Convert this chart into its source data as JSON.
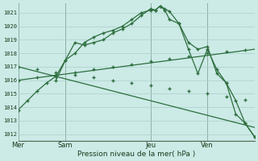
{
  "bg_color": "#cceae6",
  "grid_color": "#aacfcc",
  "line_color": "#2d6e3e",
  "ylabel_min": 1012,
  "ylabel_max": 1021,
  "xlabel": "Pression niveau de la mer( hPa )",
  "day_labels": [
    "Mer",
    "Sam",
    "Jeu",
    "Ven"
  ],
  "day_positions": [
    0,
    5,
    14,
    20
  ],
  "xlim": [
    0,
    25
  ],
  "line1_x": [
    0,
    1,
    2,
    3,
    4,
    5,
    6,
    7,
    8,
    9,
    10,
    11,
    12,
    13,
    14,
    14.5,
    15,
    15.5,
    16,
    17,
    18,
    19,
    20,
    21,
    22,
    23,
    24,
    25
  ],
  "line1_y": [
    1013.8,
    1014.5,
    1015.2,
    1015.8,
    1016.3,
    1017.5,
    1018.0,
    1018.8,
    1019.2,
    1019.5,
    1019.7,
    1020.0,
    1020.5,
    1021.0,
    1021.2,
    1021.2,
    1021.5,
    1021.3,
    1021.1,
    1020.2,
    1018.8,
    1018.3,
    1018.5,
    1016.5,
    1015.8,
    1013.5,
    1012.8,
    1011.8
  ],
  "line2_x": [
    4,
    5,
    6,
    7,
    8,
    9,
    10,
    11,
    12,
    13,
    14,
    14.5,
    15,
    15.5,
    16,
    17,
    18,
    19,
    20,
    21,
    22,
    23,
    24,
    25
  ],
  "line2_y": [
    1016.0,
    1017.5,
    1018.8,
    1018.6,
    1018.8,
    1019.0,
    1019.5,
    1019.8,
    1020.2,
    1020.8,
    1021.3,
    1021.2,
    1021.5,
    1021.2,
    1020.5,
    1020.2,
    1018.3,
    1016.5,
    1018.3,
    1016.8,
    1015.8,
    1014.5,
    1012.8,
    1011.8
  ],
  "line3_x": [
    0,
    25
  ],
  "line3_y": [
    1016.0,
    1018.3
  ],
  "line4_x": [
    0,
    25
  ],
  "line4_y": [
    1017.0,
    1012.5
  ],
  "line3_markers_x": [
    0,
    2,
    4,
    6,
    8,
    10,
    12,
    14,
    16,
    18,
    20,
    22,
    24
  ],
  "line3_markers_y": [
    1016.0,
    1016.2,
    1016.4,
    1016.6,
    1016.8,
    1017.0,
    1017.2,
    1017.4,
    1017.6,
    1017.8,
    1018.0,
    1018.1,
    1018.25
  ],
  "line4_markers_x": [
    0,
    2,
    4,
    6,
    8,
    10,
    12,
    14,
    16,
    18,
    20,
    22,
    24
  ],
  "line4_markers_y": [
    1017.0,
    1016.8,
    1016.6,
    1016.4,
    1016.2,
    1016.0,
    1015.8,
    1015.6,
    1015.4,
    1015.2,
    1015.0,
    1014.8,
    1014.55
  ]
}
